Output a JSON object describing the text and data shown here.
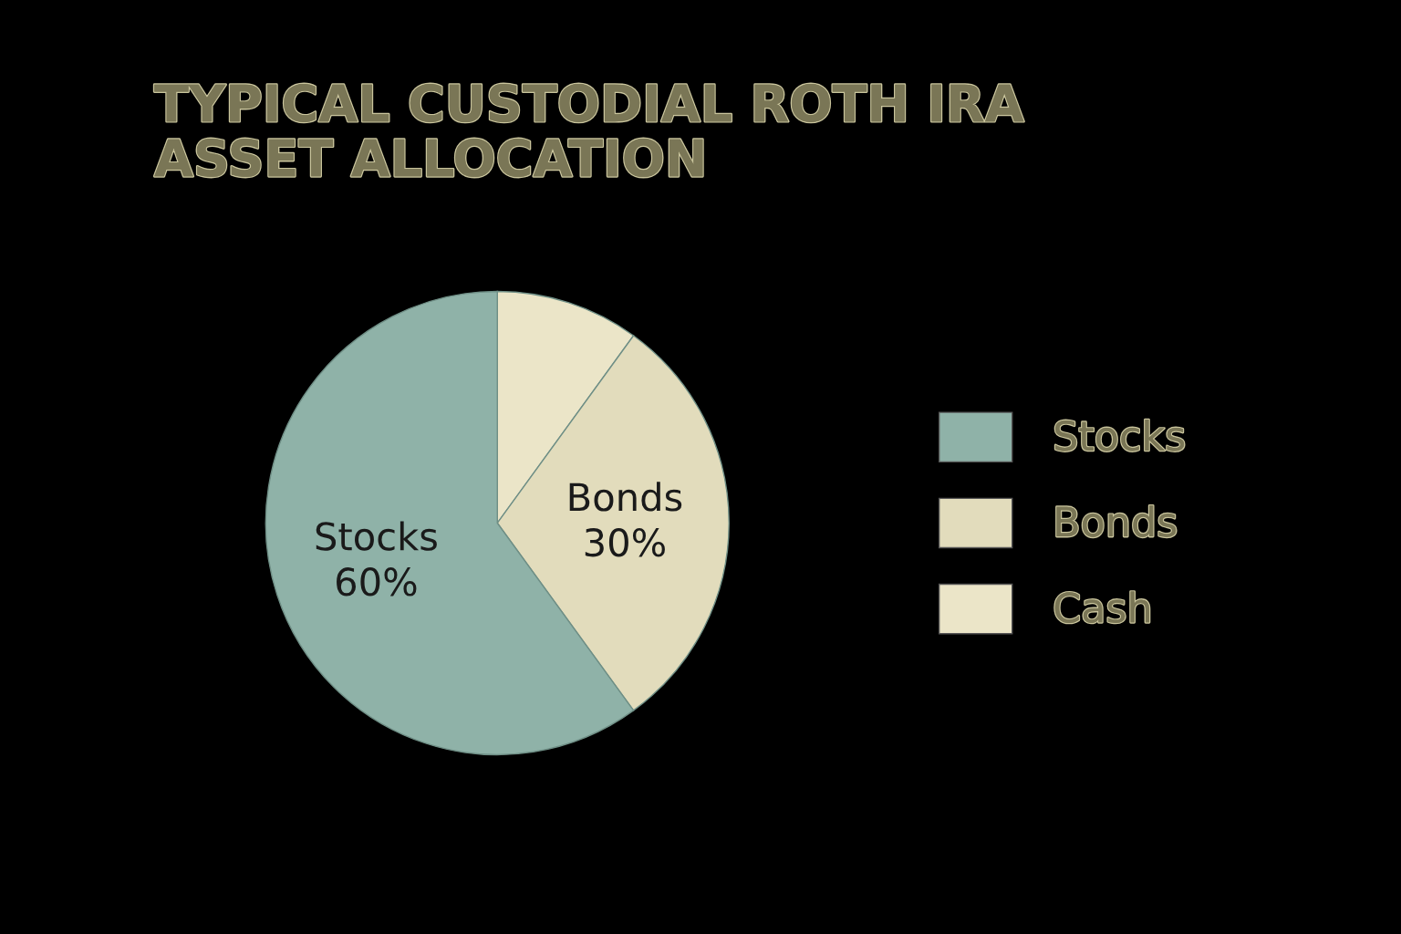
{
  "chart_data": {
    "type": "pie",
    "title": "TYPICAL CUSTODIAL ROTH IRA\nASSET ALLOCATION",
    "categories": [
      "Stocks",
      "Bonds",
      "Cash"
    ],
    "values": [
      60,
      30,
      10
    ],
    "colors": [
      "#8fb2a8",
      "#e2dcbc",
      "#ebe5c8"
    ],
    "value_labels": [
      "60%",
      "30%",
      null
    ],
    "legend": "right"
  }
}
